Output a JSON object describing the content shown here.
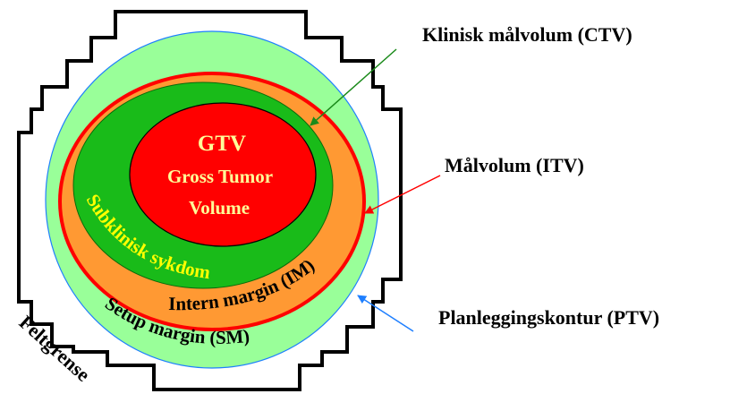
{
  "labels": {
    "gtv": "GTV",
    "gtv_line1": "Gross Tumor",
    "gtv_line2": "Volume",
    "subclinical": "Subklinisk sykdom",
    "internal_margin": "Intern margin (IM)",
    "setup_margin": "Setup margin (SM)",
    "field_boundary": "Feltgrense",
    "ctv": "Klinisk målvolum (CTV)",
    "itv": "Målvolum (ITV)",
    "ptv": "Planleggingskontur (PTV)"
  },
  "colors": {
    "ptv_fill": "#99FF99",
    "ptv_stroke": "#1E7FFF",
    "itv_fill": "#FF9933",
    "itv_stroke": "#FF0000",
    "ctv_fill": "#19BB19",
    "gtv_fill": "#FF0000",
    "gtv_text": "#FFFF99",
    "subclinical_text": "#FFFF00",
    "ctv_arrow": "#1A8A1A",
    "itv_arrow": "#FF0000",
    "ptv_arrow": "#1E7FFF"
  }
}
